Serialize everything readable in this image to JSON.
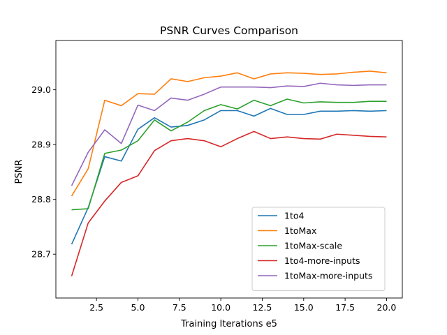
{
  "chart_data": {
    "type": "line",
    "title": "PSNR Curves Comparison",
    "xlabel": "Training Iterations e5",
    "ylabel": "PSNR",
    "xlim": [
      0.05,
      20.95
    ],
    "ylim": [
      28.62,
      29.09
    ],
    "xticks": [
      2.5,
      5.0,
      7.5,
      10.0,
      12.5,
      15.0,
      17.5,
      20.0
    ],
    "xtick_labels": [
      "2.5",
      "5.0",
      "7.5",
      "10.0",
      "12.5",
      "15.0",
      "17.5",
      "20.0"
    ],
    "yticks": [
      28.7,
      28.8,
      28.9,
      29.0
    ],
    "ytick_labels": [
      "28.7",
      "28.8",
      "28.9",
      "29.0"
    ],
    "grid": false,
    "legend_position": "lower-right",
    "x": [
      1,
      2,
      3,
      4,
      5,
      6,
      7,
      8,
      9,
      10,
      11,
      12,
      13,
      14,
      15,
      16,
      17,
      18,
      19,
      20
    ],
    "series": [
      {
        "name": "1to4",
        "color": "#1f77b4",
        "values": [
          28.718,
          28.785,
          28.878,
          28.87,
          28.928,
          28.949,
          28.932,
          28.935,
          28.945,
          28.962,
          28.962,
          28.952,
          28.966,
          28.955,
          28.955,
          28.961,
          28.961,
          28.962,
          28.961,
          28.962
        ]
      },
      {
        "name": "1toMax",
        "color": "#ff7f0e",
        "values": [
          28.806,
          28.856,
          28.981,
          28.971,
          28.993,
          28.992,
          29.02,
          29.015,
          29.022,
          29.025,
          29.031,
          29.02,
          29.029,
          29.031,
          29.03,
          29.028,
          29.029,
          29.032,
          29.034,
          29.031
        ]
      },
      {
        "name": "1toMax-scale",
        "color": "#2ca02c",
        "values": [
          28.781,
          28.783,
          28.884,
          28.89,
          28.907,
          28.945,
          28.925,
          28.941,
          28.962,
          28.973,
          28.965,
          28.981,
          28.971,
          28.983,
          28.976,
          28.978,
          28.977,
          28.977,
          28.979,
          28.979
        ]
      },
      {
        "name": "1to4-more-inputs",
        "color": "#d62728",
        "values": [
          28.66,
          28.757,
          28.797,
          28.831,
          28.843,
          28.889,
          28.907,
          28.911,
          28.907,
          28.896,
          28.911,
          28.924,
          28.911,
          28.914,
          28.911,
          28.91,
          28.919,
          28.917,
          28.915,
          28.914
        ]
      },
      {
        "name": "1toMax-more-inputs",
        "color": "#9467bd",
        "values": [
          28.825,
          28.886,
          28.927,
          28.902,
          28.972,
          28.962,
          28.985,
          28.981,
          28.992,
          29.005,
          29.005,
          29.005,
          29.004,
          29.007,
          29.006,
          29.012,
          29.009,
          29.008,
          29.009,
          29.009
        ]
      }
    ]
  }
}
